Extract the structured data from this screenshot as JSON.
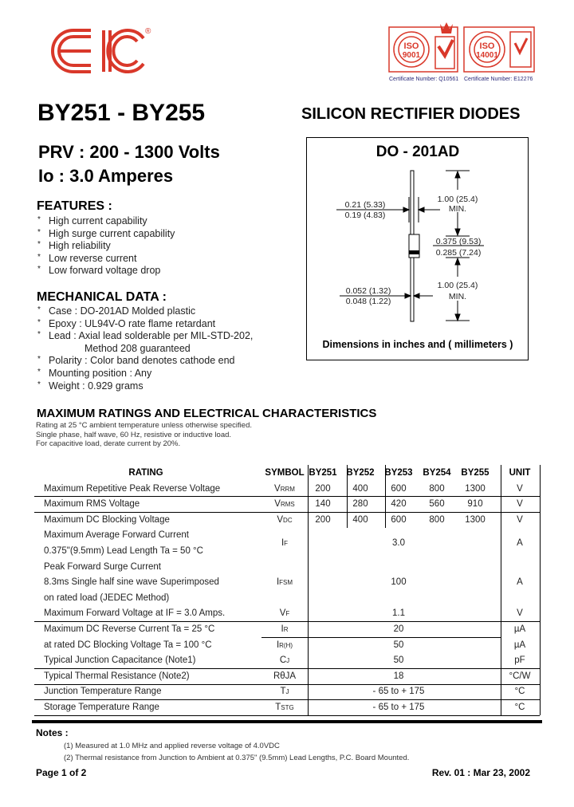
{
  "logo": {
    "text": "EIC",
    "registered": "®",
    "color": "#d9382a"
  },
  "certificates": [
    {
      "name": "ISO 9001",
      "number": "Certificate Number: Q10561"
    },
    {
      "name": "ISO 14001",
      "number": "Certificate Number: E12276"
    }
  ],
  "cert_color": "#d9382a",
  "cert_text_color": "#2a2a7a",
  "title": "BY251 - BY255",
  "subtitle": "SILICON RECTIFIER DIODES",
  "prv": "PRV : 200 - 1300 Volts",
  "io": "Io : 3.0 Amperes",
  "features": {
    "heading": "FEATURES :",
    "items": [
      "High current capability",
      "High surge current capability",
      "High reliability",
      "Low reverse current",
      "Low forward voltage drop"
    ]
  },
  "mechanical": {
    "heading": "MECHANICAL DATA :",
    "items": [
      "Case : DO-201AD Molded plastic",
      "Epoxy : UL94V-O rate flame retardant",
      "Lead : Axial lead solderable per MIL-STD-202,",
      "Polarity : Color band denotes cathode end",
      "Mounting position : Any",
      "Weight : 0.929 grams"
    ],
    "lead_cont": "Method 208 guaranteed"
  },
  "diagram": {
    "title": "DO - 201AD",
    "dim_top": "1.00 (25.4)",
    "min": "MIN.",
    "dim_bottom": "1.00 (25.4)",
    "body_dia_max": "0.21 (5.33)",
    "body_dia_min": "0.19 (4.83)",
    "body_len_max": "0.375 (9.53)",
    "body_len_min": "0.285 (7.24)",
    "lead_dia_max": "0.052 (1.32)",
    "lead_dia_min": "0.048 (1.22)",
    "caption": "Dimensions in inches and ( millimeters )"
  },
  "ratings": {
    "heading": "MAXIMUM RATINGS AND ELECTRICAL CHARACTERISTICS",
    "conditions": [
      "Rating at 25 °C ambient temperature unless otherwise specified.",
      "Single phase, half wave, 60 Hz, resistive or inductive load.",
      "For capacitive load, derate current by 20%."
    ],
    "headers": {
      "rating": "RATING",
      "symbol": "SYMBOL",
      "parts": [
        "BY251",
        "BY252",
        "BY253",
        "BY254",
        "BY255"
      ],
      "unit": "UNIT"
    },
    "rows": [
      {
        "rating": [
          "Maximum Repetitive Peak Reverse Voltage"
        ],
        "symbol": "V",
        "symbol_sub": "RRM",
        "values": [
          "200",
          "400",
          "600",
          "800",
          "1300"
        ],
        "unit": "V"
      },
      {
        "rating": [
          "Maximum RMS Voltage"
        ],
        "symbol": "V",
        "symbol_sub": "RMS",
        "values": [
          "140",
          "280",
          "420",
          "560",
          "910"
        ],
        "unit": "V"
      },
      {
        "rating": [
          "Maximum DC Blocking Voltage"
        ],
        "symbol": "V",
        "symbol_sub": "DC",
        "values": [
          "200",
          "400",
          "600",
          "800",
          "1300"
        ],
        "unit": "V"
      },
      {
        "rating": [
          "Maximum Average Forward Current",
          "0.375\"(9.5mm) Lead Length  Ta = 50 °C"
        ],
        "symbol": "I",
        "symbol_sub": "F",
        "value": "3.0",
        "unit": "A"
      },
      {
        "rating": [
          "Peak Forward Surge Current",
          "8.3ms Single half sine wave Superimposed",
          "on rated load  (JEDEC Method)"
        ],
        "symbol": "I",
        "symbol_sub": "FSM",
        "value": "100",
        "unit": "A"
      },
      {
        "rating": [
          "Maximum Forward Voltage at IF = 3.0 Amps."
        ],
        "symbol": "V",
        "symbol_sub": "F",
        "value": "1.1",
        "unit": "V"
      },
      {
        "rating": [
          "Maximum DC Reverse Current          Ta = 25 °C"
        ],
        "symbol": "I",
        "symbol_sub": "R",
        "value": "20",
        "unit": "µA"
      },
      {
        "rating": [
          "at rated DC Blocking Voltage        Ta = 100 °C"
        ],
        "symbol": "I",
        "symbol_sub": "R(H)",
        "value": "50",
        "unit": "µA"
      },
      {
        "rating": [
          "Typical Junction Capacitance (Note1)"
        ],
        "symbol": "C",
        "symbol_sub": "J",
        "value": "50",
        "unit": "pF"
      },
      {
        "rating": [
          "Typical Thermal Resistance (Note2)"
        ],
        "symbol": "RθJA",
        "symbol_sub": "",
        "value": "18",
        "unit": "°C/W"
      },
      {
        "rating": [
          "Junction Temperature Range"
        ],
        "symbol": "T",
        "symbol_sub": "J",
        "value": "- 65 to + 175",
        "unit": "°C"
      },
      {
        "rating": [
          "Storage Temperature Range"
        ],
        "symbol": "T",
        "symbol_sub": "STG",
        "value": "- 65 to + 175",
        "unit": "°C"
      }
    ]
  },
  "notes": {
    "heading": "Notes :",
    "items": [
      "(1) Measured at 1.0 MHz and applied  reverse voltage of 4.0VDC",
      "(2) Thermal resistance from Junction to Ambient at 0.375\" (9.5mm) Lead Lengths, P.C. Board Mounted."
    ]
  },
  "footer": {
    "page": "Page 1 of 2",
    "rev": "Rev. 01 : Mar 23, 2002"
  }
}
